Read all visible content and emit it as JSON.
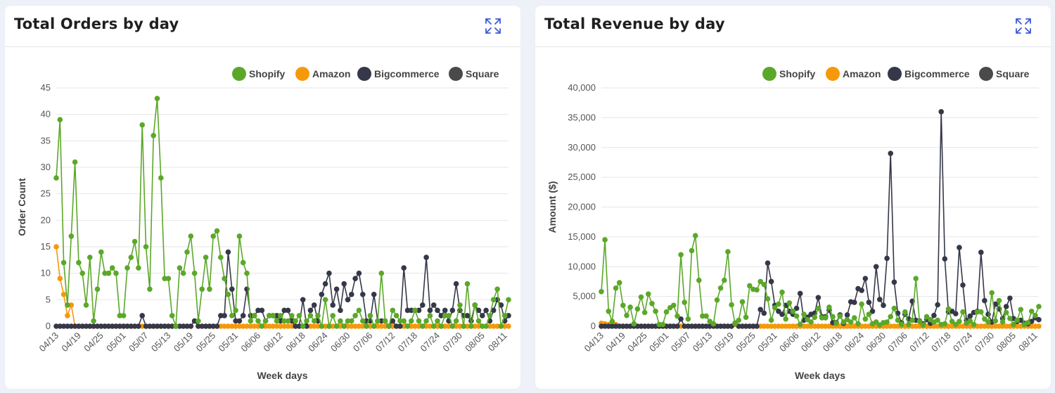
{
  "chart_data": [
    {
      "type": "line",
      "title": "Total Orders by day",
      "xlabel": "Week days",
      "ylabel": "Order Count",
      "ylim": [
        0,
        45
      ],
      "yticks": [
        0,
        5,
        10,
        15,
        20,
        25,
        30,
        35,
        40,
        45
      ],
      "ytick_labels": [
        "0",
        "5",
        "10",
        "15",
        "20",
        "25",
        "30",
        "35",
        "40",
        "45"
      ],
      "xtick_labels": [
        "04/13",
        "04/19",
        "04/25",
        "05/01",
        "05/07",
        "05/13",
        "05/19",
        "05/25",
        "05/31",
        "06/06",
        "06/12",
        "06/18",
        "06/24",
        "06/30",
        "07/06",
        "07/12",
        "07/18",
        "07/24",
        "07/30",
        "08/05",
        "08/11"
      ],
      "num_points": 122,
      "legend": [
        "Shopify",
        "Amazon",
        "Bigcommerce",
        "Square"
      ],
      "series": [
        {
          "name": "Shopify",
          "color": "#5ba829",
          "values": [
            28,
            39,
            12,
            4,
            17,
            31,
            12,
            10,
            4,
            13,
            1,
            7,
            14,
            10,
            10,
            11,
            10,
            2,
            2,
            11,
            13,
            16,
            11,
            38,
            15,
            7,
            36,
            43,
            28,
            9,
            9,
            2,
            0,
            11,
            10,
            14,
            17,
            10,
            1,
            7,
            13,
            7,
            17,
            18,
            13,
            9,
            6,
            2,
            3,
            17,
            12,
            10,
            1,
            2,
            1,
            0,
            1,
            2,
            2,
            1,
            2,
            1,
            1,
            2,
            1,
            2,
            0,
            1,
            2,
            1,
            2,
            0,
            5,
            0,
            2,
            0,
            1,
            0,
            1,
            1,
            2,
            3,
            1,
            0,
            2,
            0,
            1,
            10,
            1,
            0,
            3,
            2,
            1,
            1,
            0,
            1,
            3,
            1,
            0,
            1,
            2,
            0,
            1,
            0,
            2,
            2,
            0,
            1,
            4,
            0,
            8,
            0,
            4,
            1,
            0,
            0,
            2,
            5,
            7,
            0,
            2,
            5
          ]
        },
        {
          "name": "Amazon",
          "color": "#f5990b",
          "values": [
            15,
            9,
            6,
            2,
            4,
            0,
            0,
            0,
            0,
            0,
            0,
            0,
            0,
            0,
            0,
            0,
            0,
            0,
            0,
            0,
            0,
            0,
            0,
            0,
            0,
            0,
            0,
            0,
            0,
            0,
            0,
            0,
            0,
            0,
            0,
            0,
            0,
            1,
            0,
            0,
            0,
            0,
            0,
            0,
            0,
            0,
            0,
            0,
            0,
            0,
            0,
            0,
            0,
            0,
            0,
            0,
            0,
            0,
            0,
            0,
            0,
            0,
            0,
            0,
            0,
            0,
            0,
            0,
            0,
            0,
            0,
            0,
            0,
            0,
            0,
            0,
            0,
            0,
            0,
            0,
            0,
            0,
            0,
            0,
            0,
            0,
            0,
            0,
            0,
            0,
            0,
            0,
            0,
            0,
            0,
            0,
            0,
            0,
            0,
            0,
            0,
            0,
            0,
            0,
            0,
            0,
            0,
            0,
            0,
            0,
            0,
            0,
            0,
            0,
            0,
            0,
            0,
            0,
            0,
            0,
            0,
            0
          ]
        },
        {
          "name": "Bigcommerce",
          "color": "#353848",
          "values": [
            0,
            0,
            0,
            0,
            0,
            0,
            0,
            0,
            0,
            0,
            0,
            0,
            0,
            0,
            0,
            0,
            0,
            0,
            0,
            0,
            0,
            0,
            0,
            2,
            0,
            0,
            0,
            0,
            0,
            0,
            0,
            0,
            0,
            0,
            0,
            0,
            0,
            1,
            0,
            0,
            0,
            0,
            0,
            0,
            2,
            2,
            14,
            7,
            1,
            1,
            2,
            7,
            2,
            2,
            3,
            3,
            1,
            2,
            2,
            2,
            1,
            3,
            3,
            1,
            0,
            0,
            5,
            0,
            3,
            4,
            1,
            6,
            8,
            10,
            4,
            7,
            3,
            8,
            5,
            6,
            9,
            10,
            6,
            1,
            1,
            6,
            1,
            1,
            1,
            0,
            1,
            0,
            0,
            11,
            3,
            3,
            3,
            3,
            4,
            13,
            3,
            4,
            3,
            2,
            3,
            1,
            3,
            8,
            3,
            2,
            2,
            1,
            4,
            3,
            2,
            3,
            1,
            3,
            5,
            4,
            1,
            2
          ]
        },
        {
          "name": "Square",
          "color": "#4a4a4a",
          "values": []
        }
      ]
    },
    {
      "type": "line",
      "title": "Total Revenue by day",
      "xlabel": "Week days",
      "ylabel": "Amount ($)",
      "ylim": [
        0,
        40000
      ],
      "yticks": [
        0,
        5000,
        10000,
        15000,
        20000,
        25000,
        30000,
        35000,
        40000
      ],
      "ytick_labels": [
        "0",
        "5,000",
        "10,000",
        "15,000",
        "20,000",
        "25,000",
        "30,000",
        "35,000",
        "40,000"
      ],
      "xtick_labels": [
        "04/13",
        "04/19",
        "04/25",
        "05/01",
        "05/07",
        "05/13",
        "05/19",
        "05/25",
        "05/31",
        "06/06",
        "06/12",
        "06/18",
        "06/24",
        "06/30",
        "07/06",
        "07/12",
        "07/18",
        "07/24",
        "07/30",
        "08/05",
        "08/11"
      ],
      "num_points": 122,
      "legend": [
        "Shopify",
        "Amazon",
        "Bigcommerce",
        "Square"
      ],
      "series": [
        {
          "name": "Shopify",
          "color": "#5ba829",
          "values": [
            5800,
            14500,
            2500,
            800,
            6400,
            7300,
            3500,
            1800,
            3200,
            400,
            2900,
            4900,
            2300,
            5400,
            3800,
            2500,
            300,
            300,
            2400,
            3100,
            3500,
            1700,
            12000,
            4000,
            1200,
            12700,
            15200,
            7700,
            1700,
            1700,
            800,
            400,
            4400,
            6400,
            7700,
            12500,
            3600,
            400,
            1000,
            4100,
            1500,
            6800,
            6200,
            6100,
            7500,
            7000,
            4600,
            1000,
            3100,
            3700,
            5700,
            1200,
            3900,
            2500,
            1700,
            300,
            2000,
            1100,
            700,
            1500,
            3000,
            1400,
            1400,
            3200,
            1600,
            500,
            1700,
            700,
            1100,
            700,
            1400,
            400,
            3700,
            1200,
            2000,
            400,
            700,
            200,
            600,
            700,
            1600,
            3000,
            1000,
            300,
            2400,
            300,
            1000,
            8000,
            800,
            200,
            1600,
            1100,
            700,
            1000,
            300,
            400,
            2900,
            800,
            300,
            800,
            2400,
            500,
            900,
            300,
            2400,
            2400,
            1200,
            700,
            5600,
            900,
            4300,
            700,
            2300,
            1300,
            300,
            1000,
            2800,
            300,
            600,
            2500,
            1800,
            3300
          ]
        },
        {
          "name": "Amazon",
          "color": "#f5990b",
          "values": [
            500,
            400,
            300,
            200,
            300,
            0,
            0,
            0,
            0,
            0,
            0,
            0,
            0,
            0,
            0,
            0,
            0,
            0,
            0,
            0,
            0,
            0,
            0,
            0,
            0,
            0,
            0,
            0,
            0,
            0,
            0,
            0,
            0,
            0,
            0,
            0,
            0,
            300,
            0,
            0,
            0,
            0,
            0,
            0,
            0,
            0,
            0,
            0,
            0,
            0,
            0,
            0,
            0,
            0,
            0,
            0,
            0,
            0,
            0,
            0,
            0,
            0,
            0,
            0,
            0,
            0,
            0,
            0,
            0,
            0,
            0,
            0,
            0,
            0,
            0,
            0,
            0,
            0,
            0,
            0,
            0,
            0,
            0,
            0,
            0,
            0,
            0,
            0,
            0,
            0,
            0,
            0,
            0,
            0,
            0,
            0,
            0,
            0,
            0,
            0,
            0,
            0,
            0,
            0,
            0,
            0,
            0,
            0,
            0,
            0,
            0,
            0,
            0,
            0,
            0,
            0,
            0,
            0,
            0,
            0,
            0,
            0
          ]
        },
        {
          "name": "Bigcommerce",
          "color": "#353848",
          "values": [
            0,
            0,
            0,
            0,
            0,
            0,
            0,
            0,
            0,
            0,
            0,
            0,
            0,
            0,
            0,
            0,
            0,
            0,
            0,
            0,
            0,
            0,
            1200,
            0,
            0,
            0,
            0,
            0,
            0,
            0,
            0,
            0,
            0,
            0,
            0,
            0,
            0,
            500,
            0,
            0,
            0,
            0,
            0,
            0,
            2800,
            2200,
            10600,
            7500,
            3500,
            2500,
            2000,
            3500,
            2500,
            2000,
            3000,
            5500,
            1000,
            1500,
            2000,
            2200,
            4800,
            1600,
            1600,
            2700,
            600,
            600,
            1900,
            500,
            1900,
            4100,
            4000,
            6300,
            6000,
            8000,
            4000,
            2500,
            10000,
            4500,
            3500,
            11400,
            29000,
            7400,
            2200,
            600,
            2000,
            1200,
            4200,
            1000,
            900,
            400,
            1100,
            500,
            1800,
            3600,
            36000,
            11300,
            2400,
            2500,
            2100,
            13200,
            6900,
            1000,
            1700,
            2300,
            2500,
            12400,
            4300,
            2000,
            700,
            3700,
            2900,
            1300,
            3300,
            4700,
            1300,
            800,
            1000,
            500,
            400,
            800,
            1400,
            1100
          ]
        },
        {
          "name": "Square",
          "color": "#4a4a4a",
          "values": []
        }
      ]
    }
  ],
  "icons": {
    "expand": "expand-arrows-icon"
  }
}
